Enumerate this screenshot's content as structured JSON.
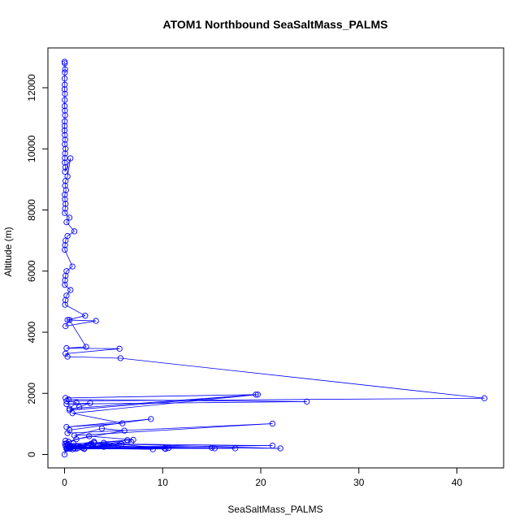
{
  "chart_data": {
    "type": "scatter",
    "title": "ATOM1 Northbound SeaSaltMass_PALMS",
    "xlabel": "SeaSaltMass_PALMS",
    "ylabel": "Altitude (m)",
    "xlim": [
      0,
      45
    ],
    "ylim": [
      0,
      12800
    ],
    "x_ticks": [
      0,
      10,
      20,
      30,
      40
    ],
    "y_ticks": [
      0,
      2000,
      4000,
      6000,
      8000,
      10000,
      12000
    ],
    "grid": false,
    "legend": "none",
    "color": "#0000ff",
    "style": "points connected by lines (type b)",
    "series": [
      {
        "x": [
          0.0,
          0.02,
          0.05,
          0.03,
          0.01,
          0.02,
          0.0,
          0.04,
          0.02,
          0.01,
          0.03,
          0.05,
          0.02,
          0.01,
          0.0,
          0.03,
          0.06,
          0.02,
          0.1,
          0.05,
          0.03,
          0.02,
          0.08,
          0.04,
          0.6,
          0.3,
          0.1,
          0.05,
          0.15,
          0.02,
          0.04,
          0.1,
          0.06,
          0.03,
          0.5,
          0.2,
          1.0,
          0.3,
          0.1,
          0.05,
          0.02,
          0.8,
          0.2,
          0.1,
          0.05,
          0.03,
          0.6,
          0.2,
          0.1,
          0.05,
          2.1,
          0.3,
          3.2,
          0.1,
          0.5,
          2.2,
          0.2,
          5.6,
          0.1,
          0.3,
          5.7,
          42.8,
          0.2,
          1.2,
          0.5,
          19.5,
          0.1,
          0.4,
          24.7,
          0.2,
          2.6,
          1.5,
          0.5,
          19.7,
          0.8,
          5.9,
          0.2,
          8.8,
          0.5,
          0.3,
          21.2,
          1.0,
          3.8,
          6.1,
          1.2,
          0.4,
          2.5,
          7.0,
          0.3,
          0.9,
          21.2,
          1.6,
          4.0,
          10.2,
          0.2,
          0.5,
          17.4,
          2.9,
          15.0,
          1.1,
          5.8,
          22.0,
          0.4,
          6.4,
          2.0,
          10.6,
          0.2,
          3.0,
          0.6,
          9.0,
          1.3,
          6.8,
          0.5,
          2.7,
          10.3,
          0.3,
          15.3,
          1.0,
          5.5,
          0.4,
          2.0,
          0.2,
          4.0,
          0.6,
          3.0,
          0.1,
          0.8,
          0.3,
          1.8,
          0.1,
          0.5,
          0.05,
          0.2,
          0.0
        ],
        "y": [
          12850,
          12800,
          12600,
          12500,
          12300,
          12100,
          11950,
          11800,
          11600,
          11400,
          11250,
          11100,
          10900,
          10750,
          10600,
          10450,
          10300,
          10150,
          10000,
          9850,
          9700,
          9550,
          9400,
          9250,
          9690,
          9100,
          8950,
          8800,
          8650,
          8500,
          8350,
          8200,
          8050,
          7900,
          7750,
          7600,
          7300,
          7150,
          7000,
          6850,
          6700,
          6150,
          6000,
          5850,
          5700,
          5550,
          5380,
          5200,
          5050,
          4900,
          4540,
          4400,
          4370,
          4200,
          4400,
          3520,
          3480,
          3460,
          3300,
          3200,
          3150,
          1840,
          1750,
          1700,
          1500,
          1960,
          1850,
          1800,
          1730,
          1650,
          1680,
          1550,
          1450,
          1960,
          1350,
          1020,
          900,
          1160,
          800,
          700,
          1010,
          620,
          850,
          780,
          500,
          420,
          600,
          480,
          320,
          360,
          290,
          250,
          380,
          200,
          190,
          230,
          200,
          270,
          220,
          180,
          340,
          200,
          260,
          470,
          200,
          210,
          180,
          380,
          240,
          170,
          200,
          410,
          190,
          350,
          180,
          200,
          200,
          210,
          300,
          230,
          180,
          360,
          250,
          190,
          420,
          280,
          170,
          310,
          220,
          450,
          270,
          350,
          210,
          0
        ]
      }
    ]
  }
}
